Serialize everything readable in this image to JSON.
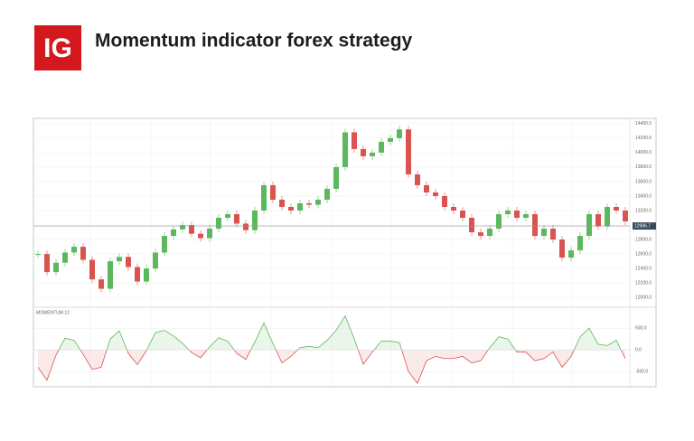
{
  "header": {
    "logo": "IG",
    "title": "Momentum indicator forex strategy"
  },
  "chart_data": [
    {
      "type": "candlestick",
      "values": [
        12600,
        12350,
        12480,
        12620,
        12700,
        12520,
        12250,
        12120,
        12500,
        12560,
        12420,
        12220,
        12400,
        12620,
        12850,
        12940,
        13000,
        12880,
        12820,
        12950,
        13100,
        13150,
        13020,
        12930,
        13200,
        13550,
        13350,
        13250,
        13200,
        13300,
        13280,
        13350,
        13500,
        13800,
        14280,
        14050,
        13950,
        14000,
        14150,
        14200,
        14320,
        13700,
        13550,
        13450,
        13400,
        13250,
        13200,
        13100,
        12900,
        12850,
        12950,
        13150,
        13200,
        13100,
        13150,
        12850,
        12950,
        12800,
        12550,
        12650,
        12850,
        13150,
        12980,
        13250,
        13200,
        13050
      ],
      "up_color": "#5cb85c",
      "down_color": "#d9534f",
      "ylim": [
        11890,
        14460
      ],
      "yticks": [
        {
          "value": 12000,
          "label": "12000.0"
        },
        {
          "value": 12200,
          "label": "12200.0"
        },
        {
          "value": 12400,
          "label": "12400.0"
        },
        {
          "value": 12600,
          "label": "12600.0"
        },
        {
          "value": 12800,
          "label": "12800.0"
        },
        {
          "value": 13000,
          "label": "13000.0"
        },
        {
          "value": 13200,
          "label": "13200.0"
        },
        {
          "value": 13400,
          "label": "13400.0"
        },
        {
          "value": 13600,
          "label": "13600.0"
        },
        {
          "value": 13800,
          "label": "13800.0"
        },
        {
          "value": 14000,
          "label": "14000.0"
        },
        {
          "value": 14200,
          "label": "14200.0"
        },
        {
          "value": 14400,
          "label": "14400.0"
        }
      ],
      "current": {
        "value": 12986.7,
        "label": "12986.7"
      }
    },
    {
      "type": "line",
      "label": "MOMENTUM 12",
      "values": [
        -400,
        -700,
        -120,
        270,
        220,
        -100,
        -450,
        -400,
        250,
        440,
        -80,
        -340,
        -20,
        400,
        450,
        320,
        150,
        -60,
        -180,
        70,
        280,
        200,
        -80,
        -220,
        180,
        620,
        150,
        -300,
        -150,
        50,
        80,
        50,
        220,
        450,
        780,
        250,
        -330,
        -50,
        200,
        200,
        170,
        -500,
        -770,
        -250,
        -150,
        -200,
        -200,
        -150,
        -300,
        -250,
        50,
        300,
        250,
        -50,
        -50,
        -250,
        -200,
        -50,
        -400,
        -150,
        300,
        500,
        130,
        100,
        220,
        -200
      ],
      "up_color": "#5cb85c",
      "down_color": "#d9534f",
      "ylim": [
        -850,
        940
      ],
      "yticks": [
        {
          "value": -500,
          "label": "-500.0"
        },
        {
          "value": 0,
          "label": "0.0"
        },
        {
          "value": 500,
          "label": "500.0"
        }
      ]
    }
  ]
}
